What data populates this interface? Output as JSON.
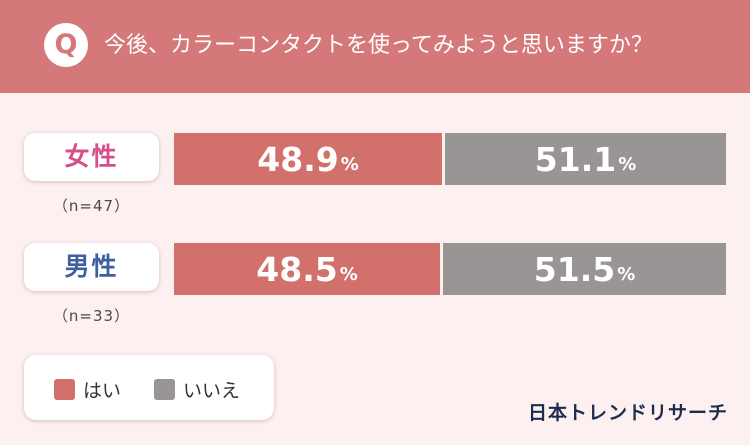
{
  "header": {
    "badge": "Q",
    "question": "今後、カラーコンタクトを使ってみようと思いますか？"
  },
  "colors": {
    "header": "#d5787a",
    "yes": "#d2706c",
    "no": "#999595",
    "female_label": "#d4508a",
    "male_label": "#3f5f9f",
    "background": "#fdf0f1"
  },
  "chart_data": {
    "type": "bar",
    "orientation": "horizontal-stacked-100",
    "unit": "%",
    "categories": [
      "女性",
      "男性"
    ],
    "sample_sizes": [
      "（n=47）",
      "（n=33）"
    ],
    "series": [
      {
        "name": "はい",
        "values": [
          48.9,
          48.5
        ]
      },
      {
        "name": "いいえ",
        "values": [
          51.1,
          51.5
        ]
      }
    ],
    "legend_position": "bottom-left"
  },
  "brand": "日本トレンドリサーチ"
}
